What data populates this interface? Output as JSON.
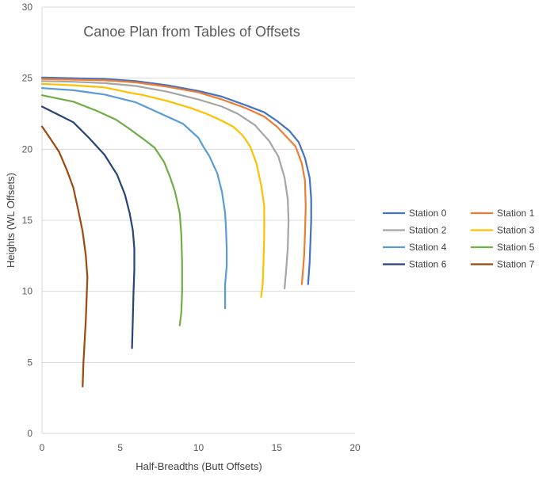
{
  "chart_data": {
    "type": "line",
    "title": "Canoe Plan from Tables of Offsets",
    "xlabel": "Half-Breadths (Butt Offsets)",
    "ylabel": "Heights (WL Offsets)",
    "xlim": [
      0,
      20
    ],
    "ylim": [
      0,
      30
    ],
    "xticks": [
      "0",
      "5",
      "10",
      "15",
      "20"
    ],
    "yticks": [
      "0",
      "5",
      "10",
      "15",
      "20",
      "25",
      "30"
    ],
    "grid": "horizontal",
    "legend_position": "right",
    "series": [
      {
        "name": "Station 0",
        "color": "#4472C4",
        "points": [
          [
            0,
            25.05
          ],
          [
            2,
            25.0
          ],
          [
            4,
            24.95
          ],
          [
            6,
            24.8
          ],
          [
            8,
            24.5
          ],
          [
            10,
            24.1
          ],
          [
            11.5,
            23.7
          ],
          [
            13,
            23.1
          ],
          [
            14.2,
            22.6
          ],
          [
            15,
            22.0
          ],
          [
            15.8,
            21.3
          ],
          [
            16.4,
            20.5
          ],
          [
            16.8,
            19.4
          ],
          [
            17.1,
            18.0
          ],
          [
            17.2,
            16.5
          ],
          [
            17.2,
            15.0
          ],
          [
            17.15,
            13.5
          ],
          [
            17.1,
            12.0
          ],
          [
            17.0,
            10.5
          ]
        ]
      },
      {
        "name": "Station 1",
        "color": "#ED7D31",
        "points": [
          [
            0,
            24.95
          ],
          [
            2,
            24.9
          ],
          [
            4,
            24.85
          ],
          [
            6,
            24.7
          ],
          [
            8,
            24.4
          ],
          [
            10,
            24.0
          ],
          [
            11.5,
            23.5
          ],
          [
            13,
            22.9
          ],
          [
            14.2,
            22.3
          ],
          [
            15,
            21.6
          ],
          [
            15.6,
            20.9
          ],
          [
            16.2,
            20.2
          ],
          [
            16.6,
            19.0
          ],
          [
            16.8,
            17.8
          ],
          [
            16.85,
            16.0
          ],
          [
            16.8,
            14.0
          ],
          [
            16.75,
            12.5
          ],
          [
            16.6,
            10.5
          ]
        ]
      },
      {
        "name": "Station 2",
        "color": "#A5A5A5",
        "points": [
          [
            0,
            24.8
          ],
          [
            2,
            24.75
          ],
          [
            4,
            24.65
          ],
          [
            6,
            24.45
          ],
          [
            8,
            24.05
          ],
          [
            10,
            23.5
          ],
          [
            11.5,
            23.0
          ],
          [
            12.5,
            22.5
          ],
          [
            13.6,
            21.7
          ],
          [
            14.5,
            20.6
          ],
          [
            15.1,
            19.5
          ],
          [
            15.5,
            18.0
          ],
          [
            15.7,
            16.5
          ],
          [
            15.75,
            15.0
          ],
          [
            15.7,
            13.0
          ],
          [
            15.6,
            11.5
          ],
          [
            15.5,
            10.2
          ]
        ]
      },
      {
        "name": "Station 3",
        "color": "#FFC000",
        "points": [
          [
            0,
            24.6
          ],
          [
            2,
            24.5
          ],
          [
            4,
            24.35
          ],
          [
            5.5,
            24.0
          ],
          [
            6.5,
            23.8
          ],
          [
            8,
            23.4
          ],
          [
            9.5,
            22.9
          ],
          [
            10.5,
            22.5
          ],
          [
            11.5,
            22.0
          ],
          [
            12.2,
            21.6
          ],
          [
            12.8,
            21.0
          ],
          [
            13.3,
            20.2
          ],
          [
            13.7,
            19.0
          ],
          [
            14.0,
            17.5
          ],
          [
            14.2,
            16.0
          ],
          [
            14.2,
            14.0
          ],
          [
            14.15,
            12.0
          ],
          [
            14.1,
            10.5
          ],
          [
            14.0,
            9.6
          ]
        ]
      },
      {
        "name": "Station 4",
        "color": "#5B9BD5",
        "points": [
          [
            0,
            24.3
          ],
          [
            2,
            24.15
          ],
          [
            4,
            23.85
          ],
          [
            6,
            23.3
          ],
          [
            7,
            22.8
          ],
          [
            8,
            22.3
          ],
          [
            9,
            21.8
          ],
          [
            10,
            20.8
          ],
          [
            10.3,
            20.2
          ],
          [
            10.7,
            19.5
          ],
          [
            11.2,
            18.3
          ],
          [
            11.5,
            17.0
          ],
          [
            11.7,
            15.5
          ],
          [
            11.75,
            14.5
          ],
          [
            11.8,
            13.0
          ],
          [
            11.8,
            11.8
          ],
          [
            11.7,
            10.5
          ],
          [
            11.7,
            8.8
          ]
        ]
      },
      {
        "name": "Station 5",
        "color": "#70AD47",
        "points": [
          [
            0,
            23.8
          ],
          [
            2,
            23.35
          ],
          [
            3.5,
            22.7
          ],
          [
            4.7,
            22.1
          ],
          [
            5.5,
            21.5
          ],
          [
            6.5,
            20.7
          ],
          [
            7.2,
            20.1
          ],
          [
            7.8,
            19.1
          ],
          [
            8.2,
            18.0
          ],
          [
            8.5,
            17.0
          ],
          [
            8.8,
            15.5
          ],
          [
            8.9,
            14.0
          ],
          [
            8.95,
            12.0
          ],
          [
            8.95,
            10.0
          ],
          [
            8.9,
            8.5
          ],
          [
            8.8,
            7.6
          ]
        ]
      },
      {
        "name": "Station 6",
        "color": "#264478",
        "points": [
          [
            0,
            23.0
          ],
          [
            1,
            22.45
          ],
          [
            2,
            21.9
          ],
          [
            3,
            20.8
          ],
          [
            4,
            19.6
          ],
          [
            4.8,
            18.2
          ],
          [
            5.3,
            16.8
          ],
          [
            5.6,
            15.5
          ],
          [
            5.8,
            14.3
          ],
          [
            5.9,
            13.0
          ],
          [
            5.9,
            11.5
          ],
          [
            5.85,
            10.0
          ],
          [
            5.8,
            8.0
          ],
          [
            5.75,
            6.0
          ]
        ]
      },
      {
        "name": "Station 7",
        "color": "#9E480E",
        "points": [
          [
            0,
            21.6
          ],
          [
            0.5,
            20.8
          ],
          [
            1.1,
            19.8
          ],
          [
            1.6,
            18.5
          ],
          [
            2.0,
            17.3
          ],
          [
            2.3,
            15.8
          ],
          [
            2.6,
            14.2
          ],
          [
            2.8,
            12.5
          ],
          [
            2.9,
            11.0
          ],
          [
            2.85,
            9.5
          ],
          [
            2.8,
            8.0
          ],
          [
            2.7,
            6.0
          ],
          [
            2.65,
            5.0
          ],
          [
            2.6,
            3.3
          ]
        ]
      }
    ]
  }
}
